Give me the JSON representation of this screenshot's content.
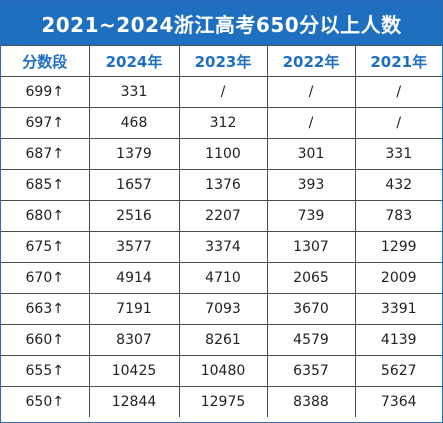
{
  "title": "2021~2024浙江高考650分以上人数",
  "colors": {
    "accent": "#1f6fc1",
    "border": "#4d4d4d"
  },
  "table": {
    "headers": [
      "分数段",
      "2024年",
      "2023年",
      "2022年",
      "2021年"
    ],
    "rows": [
      [
        "699↑",
        "331",
        "/",
        "/",
        "/"
      ],
      [
        "697↑",
        "468",
        "312",
        "/",
        "/"
      ],
      [
        "687↑",
        "1379",
        "1100",
        "301",
        "331"
      ],
      [
        "685↑",
        "1657",
        "1376",
        "393",
        "432"
      ],
      [
        "680↑",
        "2516",
        "2207",
        "739",
        "783"
      ],
      [
        "675↑",
        "3577",
        "3374",
        "1307",
        "1299"
      ],
      [
        "670↑",
        "4914",
        "4710",
        "2065",
        "2009"
      ],
      [
        "663↑",
        "7191",
        "7093",
        "3670",
        "3391"
      ],
      [
        "660↑",
        "8307",
        "8261",
        "4579",
        "4139"
      ],
      [
        "655↑",
        "10425",
        "10480",
        "6357",
        "5627"
      ],
      [
        "650↑",
        "12844",
        "12975",
        "8388",
        "7364"
      ]
    ]
  }
}
